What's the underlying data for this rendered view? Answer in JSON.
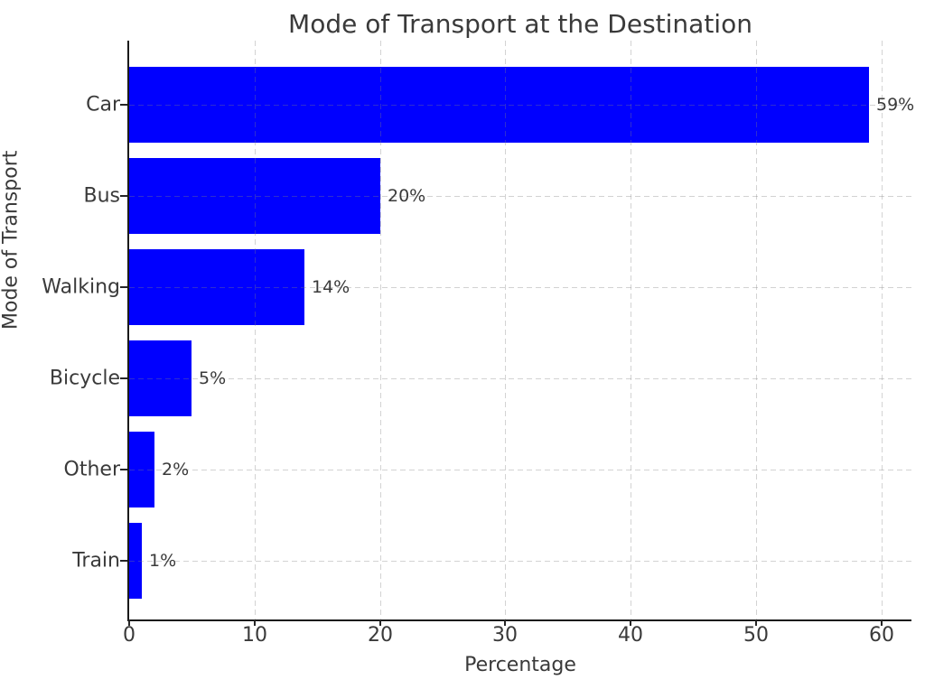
{
  "chart_data": {
    "type": "bar",
    "orientation": "horizontal",
    "title": "Mode of Transport at the Destination",
    "xlabel": "Percentage",
    "ylabel": "Mode of Transport",
    "categories": [
      "Car",
      "Bus",
      "Walking",
      "Bicycle",
      "Other",
      "Train"
    ],
    "values": [
      59,
      20,
      14,
      5,
      2,
      1
    ],
    "value_labels": [
      "59%",
      "20%",
      "14%",
      "5%",
      "2%",
      "1%"
    ],
    "x_ticks": [
      0,
      10,
      20,
      30,
      40,
      50,
      60
    ],
    "xlim": [
      0,
      62.4
    ],
    "grid": "dashed",
    "legend": "none",
    "bar_color": "#0000ff",
    "grid_color": "rgba(128,128,128,0.35)",
    "text_color": "#3a3a3a",
    "spine_color": "#1a1a1a",
    "background_color": "#ffffff"
  }
}
